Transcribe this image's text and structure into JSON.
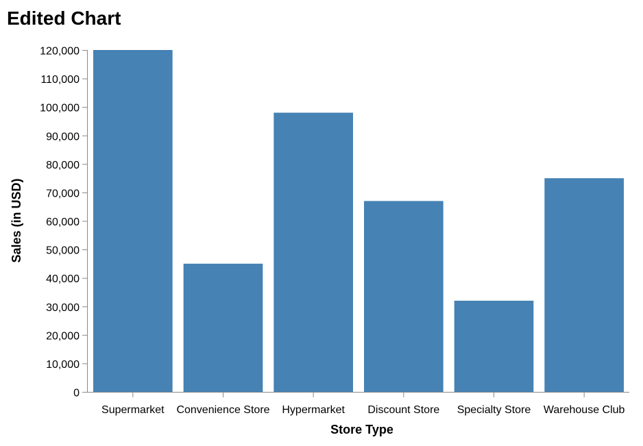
{
  "chart_data": {
    "type": "bar",
    "title": "Edited Chart",
    "xlabel": "Store Type",
    "ylabel": "Sales (in USD)",
    "categories": [
      "Supermarket",
      "Convenience Store",
      "Hypermarket",
      "Discount Store",
      "Specialty Store",
      "Warehouse Club"
    ],
    "values": [
      120000,
      45000,
      98000,
      67000,
      32000,
      75000
    ],
    "ylim": [
      0,
      120000
    ],
    "y_ticks": [
      0,
      10000,
      20000,
      30000,
      40000,
      50000,
      60000,
      70000,
      80000,
      90000,
      100000,
      110000,
      120000
    ],
    "y_tick_labels": [
      "0",
      "10,000",
      "20,000",
      "30,000",
      "40,000",
      "50,000",
      "60,000",
      "70,000",
      "80,000",
      "90,000",
      "100,000",
      "110,000",
      "120,000"
    ],
    "grid": false,
    "legend": "none",
    "bar_color": "#4682b4"
  }
}
